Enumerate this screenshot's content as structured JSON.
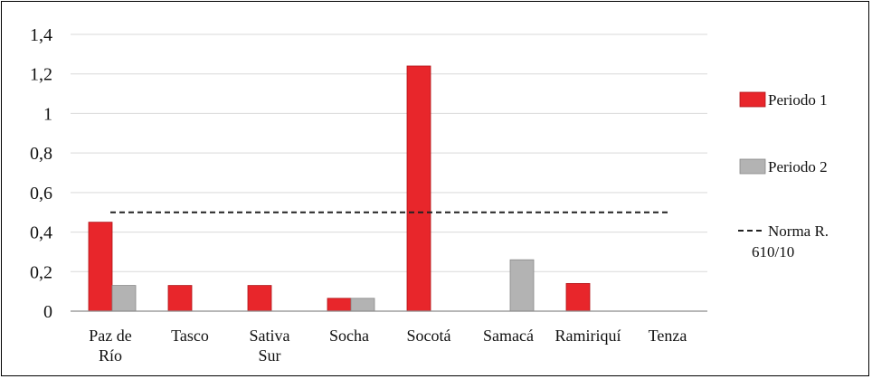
{
  "chart_data": {
    "type": "bar",
    "title": "",
    "xlabel": "",
    "ylabel": "",
    "ylim": [
      0,
      1.4
    ],
    "yticks": [
      "0",
      "0,2",
      "0,4",
      "0,6",
      "0,8",
      "1",
      "1,2",
      "1,4"
    ],
    "categories": [
      [
        "Paz de",
        "Río"
      ],
      [
        "Tasco"
      ],
      [
        "Sativa",
        "Sur"
      ],
      [
        "Socha"
      ],
      [
        "Socotá"
      ],
      [
        "Samacá"
      ],
      [
        "Ramiriquí"
      ],
      [
        "Tenza"
      ]
    ],
    "series": [
      {
        "name": "Periodo 1",
        "color": "#e8262b",
        "values": [
          0.45,
          0.13,
          0.13,
          0.065,
          1.24,
          null,
          0.14,
          null
        ]
      },
      {
        "name": "Periodo 2",
        "color": "#b3b3b3",
        "values": [
          0.13,
          null,
          null,
          0.065,
          null,
          0.26,
          null,
          null
        ]
      }
    ],
    "reference_line": {
      "name": [
        "Norma R.",
        "610/10"
      ],
      "value": 0.5,
      "style": "dashed",
      "color": "#222222"
    },
    "grid": true,
    "legend_position": "right"
  }
}
